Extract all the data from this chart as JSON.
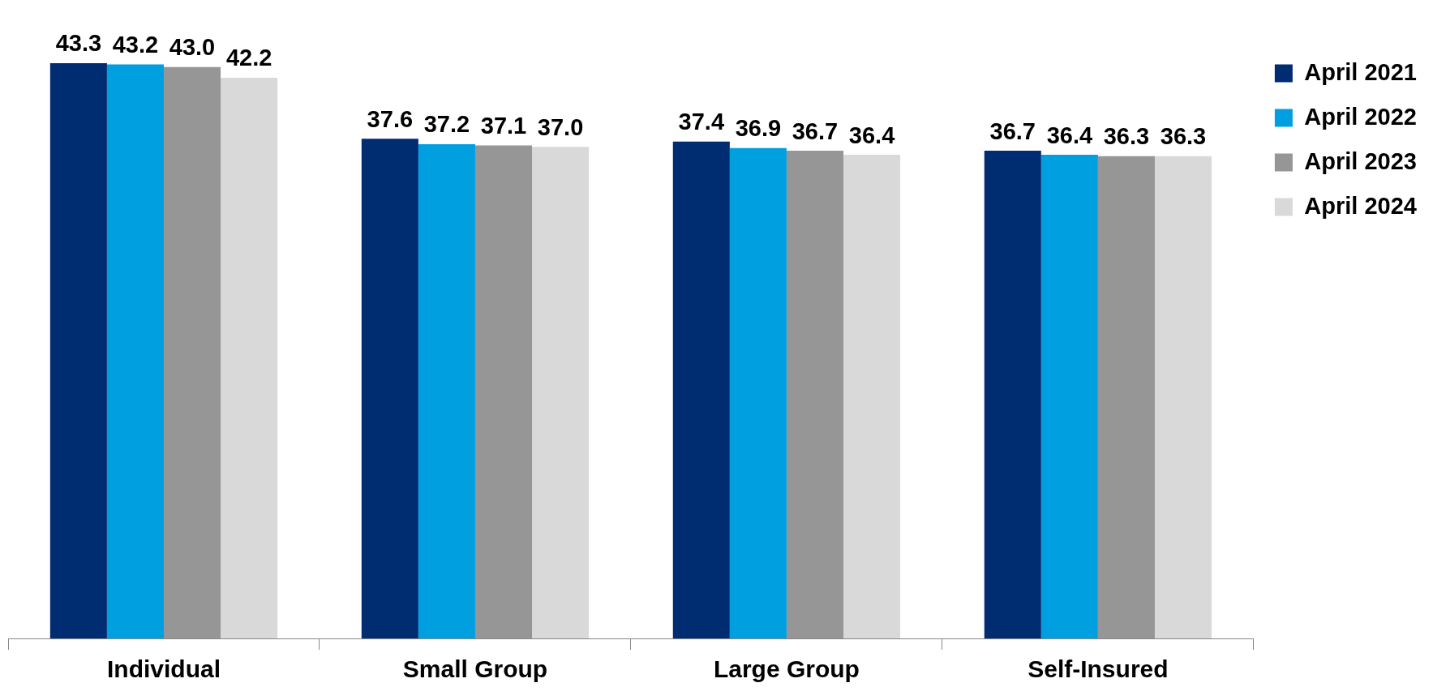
{
  "chart_data": {
    "type": "bar",
    "categories": [
      "Individual",
      "Small Group",
      "Large Group",
      "Self-Insured"
    ],
    "series": [
      {
        "name": "April 2021",
        "color": "#002d72",
        "values": [
          43.3,
          37.6,
          37.4,
          36.7
        ],
        "value_labels": [
          "43.3",
          "37.6",
          "37.4",
          "36.7"
        ]
      },
      {
        "name": "April 2022",
        "color": "#009fe0",
        "values": [
          43.2,
          37.2,
          36.9,
          36.4
        ],
        "value_labels": [
          "43.2",
          "37.2",
          "36.9",
          "36.4"
        ]
      },
      {
        "name": "April 2023",
        "color": "#969696",
        "values": [
          43.0,
          37.1,
          36.7,
          36.3
        ],
        "value_labels": [
          "43.0",
          "37.1",
          "36.7",
          "36.3"
        ]
      },
      {
        "name": "April 2024",
        "color": "#d9d9d9",
        "values": [
          42.2,
          37.0,
          36.4,
          36.3
        ],
        "value_labels": [
          "42.2",
          "37.0",
          "36.4",
          "36.3"
        ]
      }
    ],
    "tick_labels": "x",
    "grid": false,
    "legend": "right"
  }
}
